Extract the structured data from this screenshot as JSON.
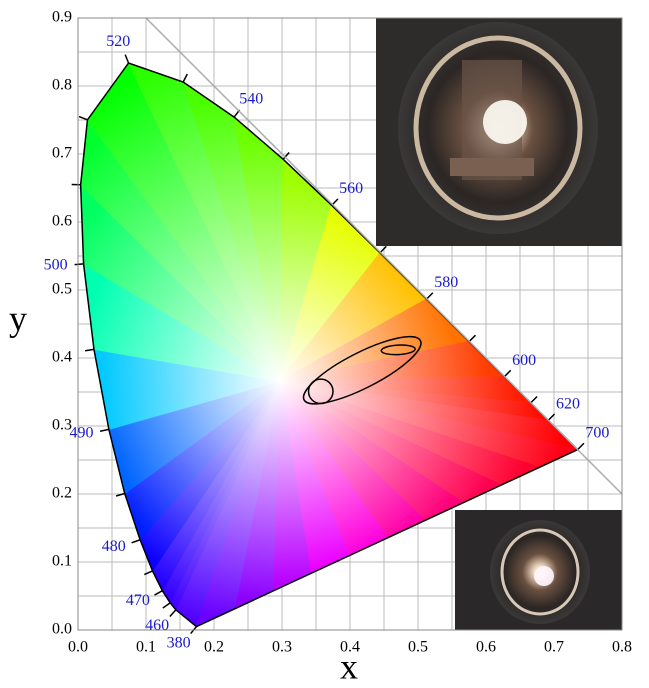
{
  "chart_data": {
    "type": "chromaticity",
    "xlabel": "x",
    "ylabel": "y",
    "xlim": [
      0,
      0.8
    ],
    "ylim": [
      0,
      0.9
    ],
    "xticks": [
      {
        "value": 0,
        "label": "0.0"
      },
      0.1,
      0.2,
      0.3,
      0.4,
      0.5,
      0.6,
      0.7,
      0.8
    ],
    "yticks": [
      {
        "value": 0,
        "label": "0.0"
      },
      0.1,
      0.2,
      0.3,
      0.4,
      0.5,
      0.6,
      0.7,
      0.8,
      0.9
    ],
    "grid": true,
    "label_color": "#1a1acc",
    "locus": {
      "wavelengths": [
        380,
        460,
        null,
        470,
        null,
        480,
        null,
        490,
        null,
        500,
        null,
        null,
        520,
        null,
        540,
        null,
        560,
        null,
        580,
        null,
        600,
        null,
        620,
        700
      ],
      "x": [
        0.1741,
        0.144,
        0.1355,
        0.1241,
        0.1096,
        0.0913,
        0.0687,
        0.0454,
        0.0235,
        0.0082,
        0.0039,
        0.0139,
        0.0743,
        0.1547,
        0.2296,
        0.3016,
        0.3731,
        0.4441,
        0.5125,
        0.5752,
        0.627,
        0.6658,
        0.6915,
        0.7347
      ],
      "y": [
        0.005,
        0.0297,
        0.0399,
        0.0578,
        0.0868,
        0.1327,
        0.2007,
        0.295,
        0.4127,
        0.5384,
        0.6548,
        0.7502,
        0.8338,
        0.8059,
        0.7543,
        0.6923,
        0.6245,
        0.5547,
        0.4866,
        0.4242,
        0.3725,
        0.334,
        0.3083,
        0.2653
      ]
    },
    "ellipses": [
      {
        "cx": 0.418,
        "cy": 0.382,
        "rx": 0.096,
        "ry": 0.026,
        "angle": 27
      },
      {
        "cx": 0.471,
        "cy": 0.412,
        "rx": 0.025,
        "ry": 0.007,
        "angle": 3
      },
      {
        "cx": 0.357,
        "cy": 0.351,
        "rx": 0.018,
        "ry": 0.018,
        "angle": 0
      }
    ]
  }
}
